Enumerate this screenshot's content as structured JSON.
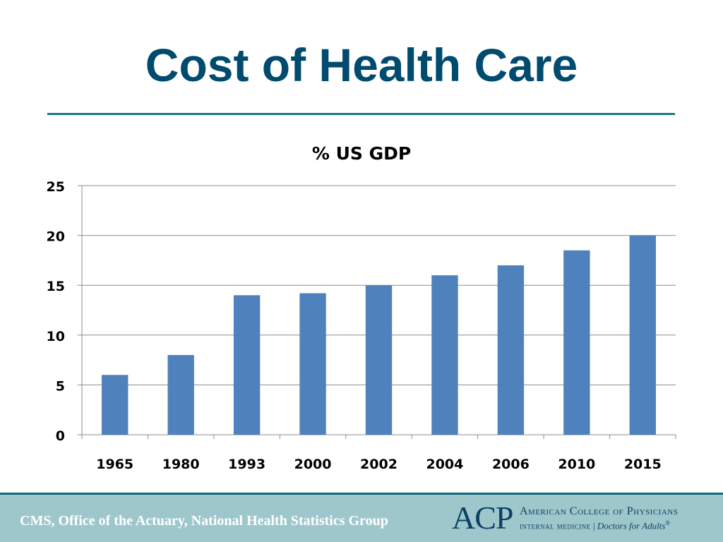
{
  "slide": {
    "title": "Cost of Health Care"
  },
  "chart_data": {
    "type": "bar",
    "title": "% US GDP",
    "xlabel": "",
    "ylabel": "",
    "categories": [
      "1965",
      "1980",
      "1993",
      "2000",
      "2002",
      "2004",
      "2006",
      "2010",
      "2015"
    ],
    "values": [
      6,
      8,
      14,
      14.2,
      15,
      16,
      17,
      18.5,
      20
    ],
    "ylim": [
      0,
      25
    ],
    "yticks": [
      "0",
      "5",
      "10",
      "15",
      "20",
      "25"
    ],
    "grid": true,
    "legend": "none",
    "colors": {
      "bar": "#4f81bd",
      "grid": "#8c8c8c",
      "axis_text": "#000000"
    }
  },
  "footer": {
    "source": "CMS, Office of the Actuary, National Health Statistics Group",
    "logo": {
      "mark": "ACP",
      "org_name": "American College of Physicians",
      "tagline_left": "internal medicine",
      "separator": "|",
      "tagline_right": "Doctors for Adults",
      "registered": "®"
    }
  },
  "colors": {
    "title": "#004b6e",
    "rule": "#1f7a7e",
    "footer_bg": "#9ec7cc",
    "footer_border": "#0f6a7a"
  }
}
